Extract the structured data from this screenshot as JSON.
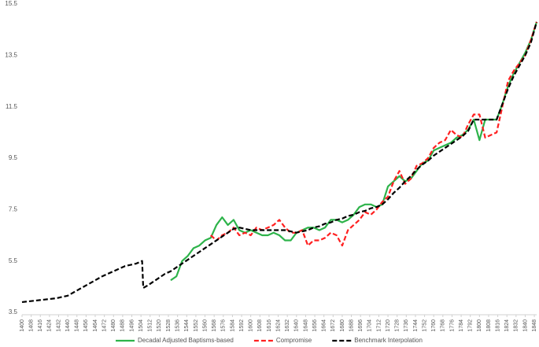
{
  "chart_data": {
    "type": "line",
    "x": [
      1400,
      1410,
      1420,
      1430,
      1440,
      1450,
      1460,
      1470,
      1480,
      1490,
      1500,
      1505,
      1506,
      1510,
      1515,
      1520,
      1525,
      1530,
      1535,
      1540,
      1545,
      1550,
      1555,
      1560,
      1565,
      1570,
      1575,
      1580,
      1585,
      1590,
      1595,
      1600,
      1605,
      1610,
      1615,
      1620,
      1625,
      1630,
      1635,
      1640,
      1645,
      1650,
      1655,
      1660,
      1665,
      1670,
      1675,
      1680,
      1685,
      1690,
      1695,
      1700,
      1705,
      1710,
      1715,
      1720,
      1725,
      1730,
      1735,
      1740,
      1745,
      1750,
      1755,
      1760,
      1765,
      1770,
      1775,
      1780,
      1785,
      1790,
      1795,
      1800,
      1805,
      1810,
      1815,
      1820,
      1825,
      1830,
      1835,
      1840,
      1845,
      1850
    ],
    "series": [
      {
        "name": "Decadal Adjusted Baptisms-based",
        "color": "#2db34a",
        "style": "solid",
        "values": [
          null,
          null,
          null,
          null,
          null,
          null,
          null,
          null,
          null,
          null,
          null,
          null,
          null,
          null,
          null,
          null,
          null,
          4.75,
          4.9,
          5.5,
          5.7,
          6.0,
          6.1,
          6.3,
          6.4,
          6.9,
          7.2,
          6.9,
          7.1,
          6.7,
          6.6,
          6.7,
          6.6,
          6.5,
          6.5,
          6.6,
          6.5,
          6.3,
          6.3,
          6.6,
          6.7,
          6.8,
          6.8,
          6.7,
          6.8,
          7.1,
          7.1,
          7.0,
          7.1,
          7.3,
          7.6,
          7.7,
          7.7,
          7.6,
          7.7,
          8.4,
          8.6,
          8.8,
          8.6,
          8.7,
          9.0,
          9.3,
          9.4,
          9.8,
          9.9,
          10.0,
          10.1,
          10.3,
          10.4,
          10.6,
          11.0,
          10.2,
          11.0,
          11.0,
          11.0,
          11.6,
          12.3,
          12.8,
          13.2,
          13.6,
          14.1,
          14.8
        ]
      },
      {
        "name": "Compromise",
        "color": "#ff2020",
        "style": "dashed",
        "values": [
          null,
          null,
          null,
          null,
          null,
          null,
          null,
          null,
          null,
          null,
          null,
          null,
          null,
          null,
          null,
          null,
          null,
          null,
          null,
          null,
          null,
          null,
          null,
          null,
          6.5,
          6.3,
          6.5,
          6.6,
          6.8,
          6.5,
          6.6,
          6.5,
          6.8,
          6.7,
          6.8,
          6.9,
          7.1,
          6.8,
          6.6,
          6.6,
          6.7,
          6.1,
          6.3,
          6.3,
          6.4,
          6.6,
          6.5,
          6.1,
          6.7,
          6.9,
          7.1,
          7.4,
          7.3,
          7.5,
          7.8,
          8.0,
          8.6,
          9.0,
          8.5,
          8.7,
          9.2,
          9.3,
          9.5,
          9.9,
          10.1,
          10.2,
          10.6,
          10.4,
          10.3,
          10.8,
          11.2,
          11.2,
          10.3,
          10.4,
          10.5,
          11.5,
          12.5,
          12.9,
          13.2,
          13.5,
          14.1,
          14.8
        ]
      },
      {
        "name": "Benchmark Interpolation",
        "color": "#000000",
        "style": "dashed",
        "values": [
          3.9,
          3.95,
          4.0,
          4.05,
          4.15,
          4.4,
          4.65,
          4.9,
          5.1,
          5.3,
          5.4,
          5.5,
          4.45,
          4.55,
          4.7,
          4.85,
          5.0,
          5.1,
          5.25,
          5.4,
          5.55,
          5.7,
          5.85,
          6.0,
          6.15,
          6.3,
          6.45,
          6.6,
          6.75,
          6.8,
          6.75,
          6.7,
          6.7,
          6.7,
          6.7,
          6.7,
          6.7,
          6.7,
          6.65,
          6.6,
          6.65,
          6.7,
          6.8,
          6.85,
          6.95,
          7.0,
          7.1,
          7.15,
          7.25,
          7.3,
          7.4,
          7.45,
          7.55,
          7.6,
          7.7,
          7.9,
          8.15,
          8.35,
          8.6,
          8.8,
          9.05,
          9.25,
          9.4,
          9.6,
          9.75,
          9.9,
          10.05,
          10.2,
          10.35,
          10.55,
          11.0,
          11.0,
          11.0,
          11.0,
          11.0,
          11.6,
          12.2,
          12.7,
          13.1,
          13.5,
          14.0,
          14.8
        ]
      }
    ],
    "xlim": [
      1400,
      1850
    ],
    "xticks": [
      1400,
      1408,
      1416,
      1424,
      1432,
      1440,
      1448,
      1456,
      1464,
      1472,
      1480,
      1488,
      1496,
      1504,
      1512,
      1520,
      1528,
      1536,
      1544,
      1552,
      1560,
      1568,
      1576,
      1584,
      1592,
      1600,
      1608,
      1616,
      1624,
      1632,
      1640,
      1648,
      1656,
      1664,
      1672,
      1680,
      1688,
      1696,
      1704,
      1712,
      1720,
      1728,
      1736,
      1744,
      1752,
      1760,
      1768,
      1776,
      1784,
      1792,
      1800,
      1808,
      1816,
      1824,
      1832,
      1840,
      1848
    ],
    "ylim": [
      3.5,
      15.5
    ],
    "yticks": [
      3.5,
      5.5,
      7.5,
      9.5,
      11.5,
      13.5,
      15.5
    ],
    "legend": "bottom"
  }
}
